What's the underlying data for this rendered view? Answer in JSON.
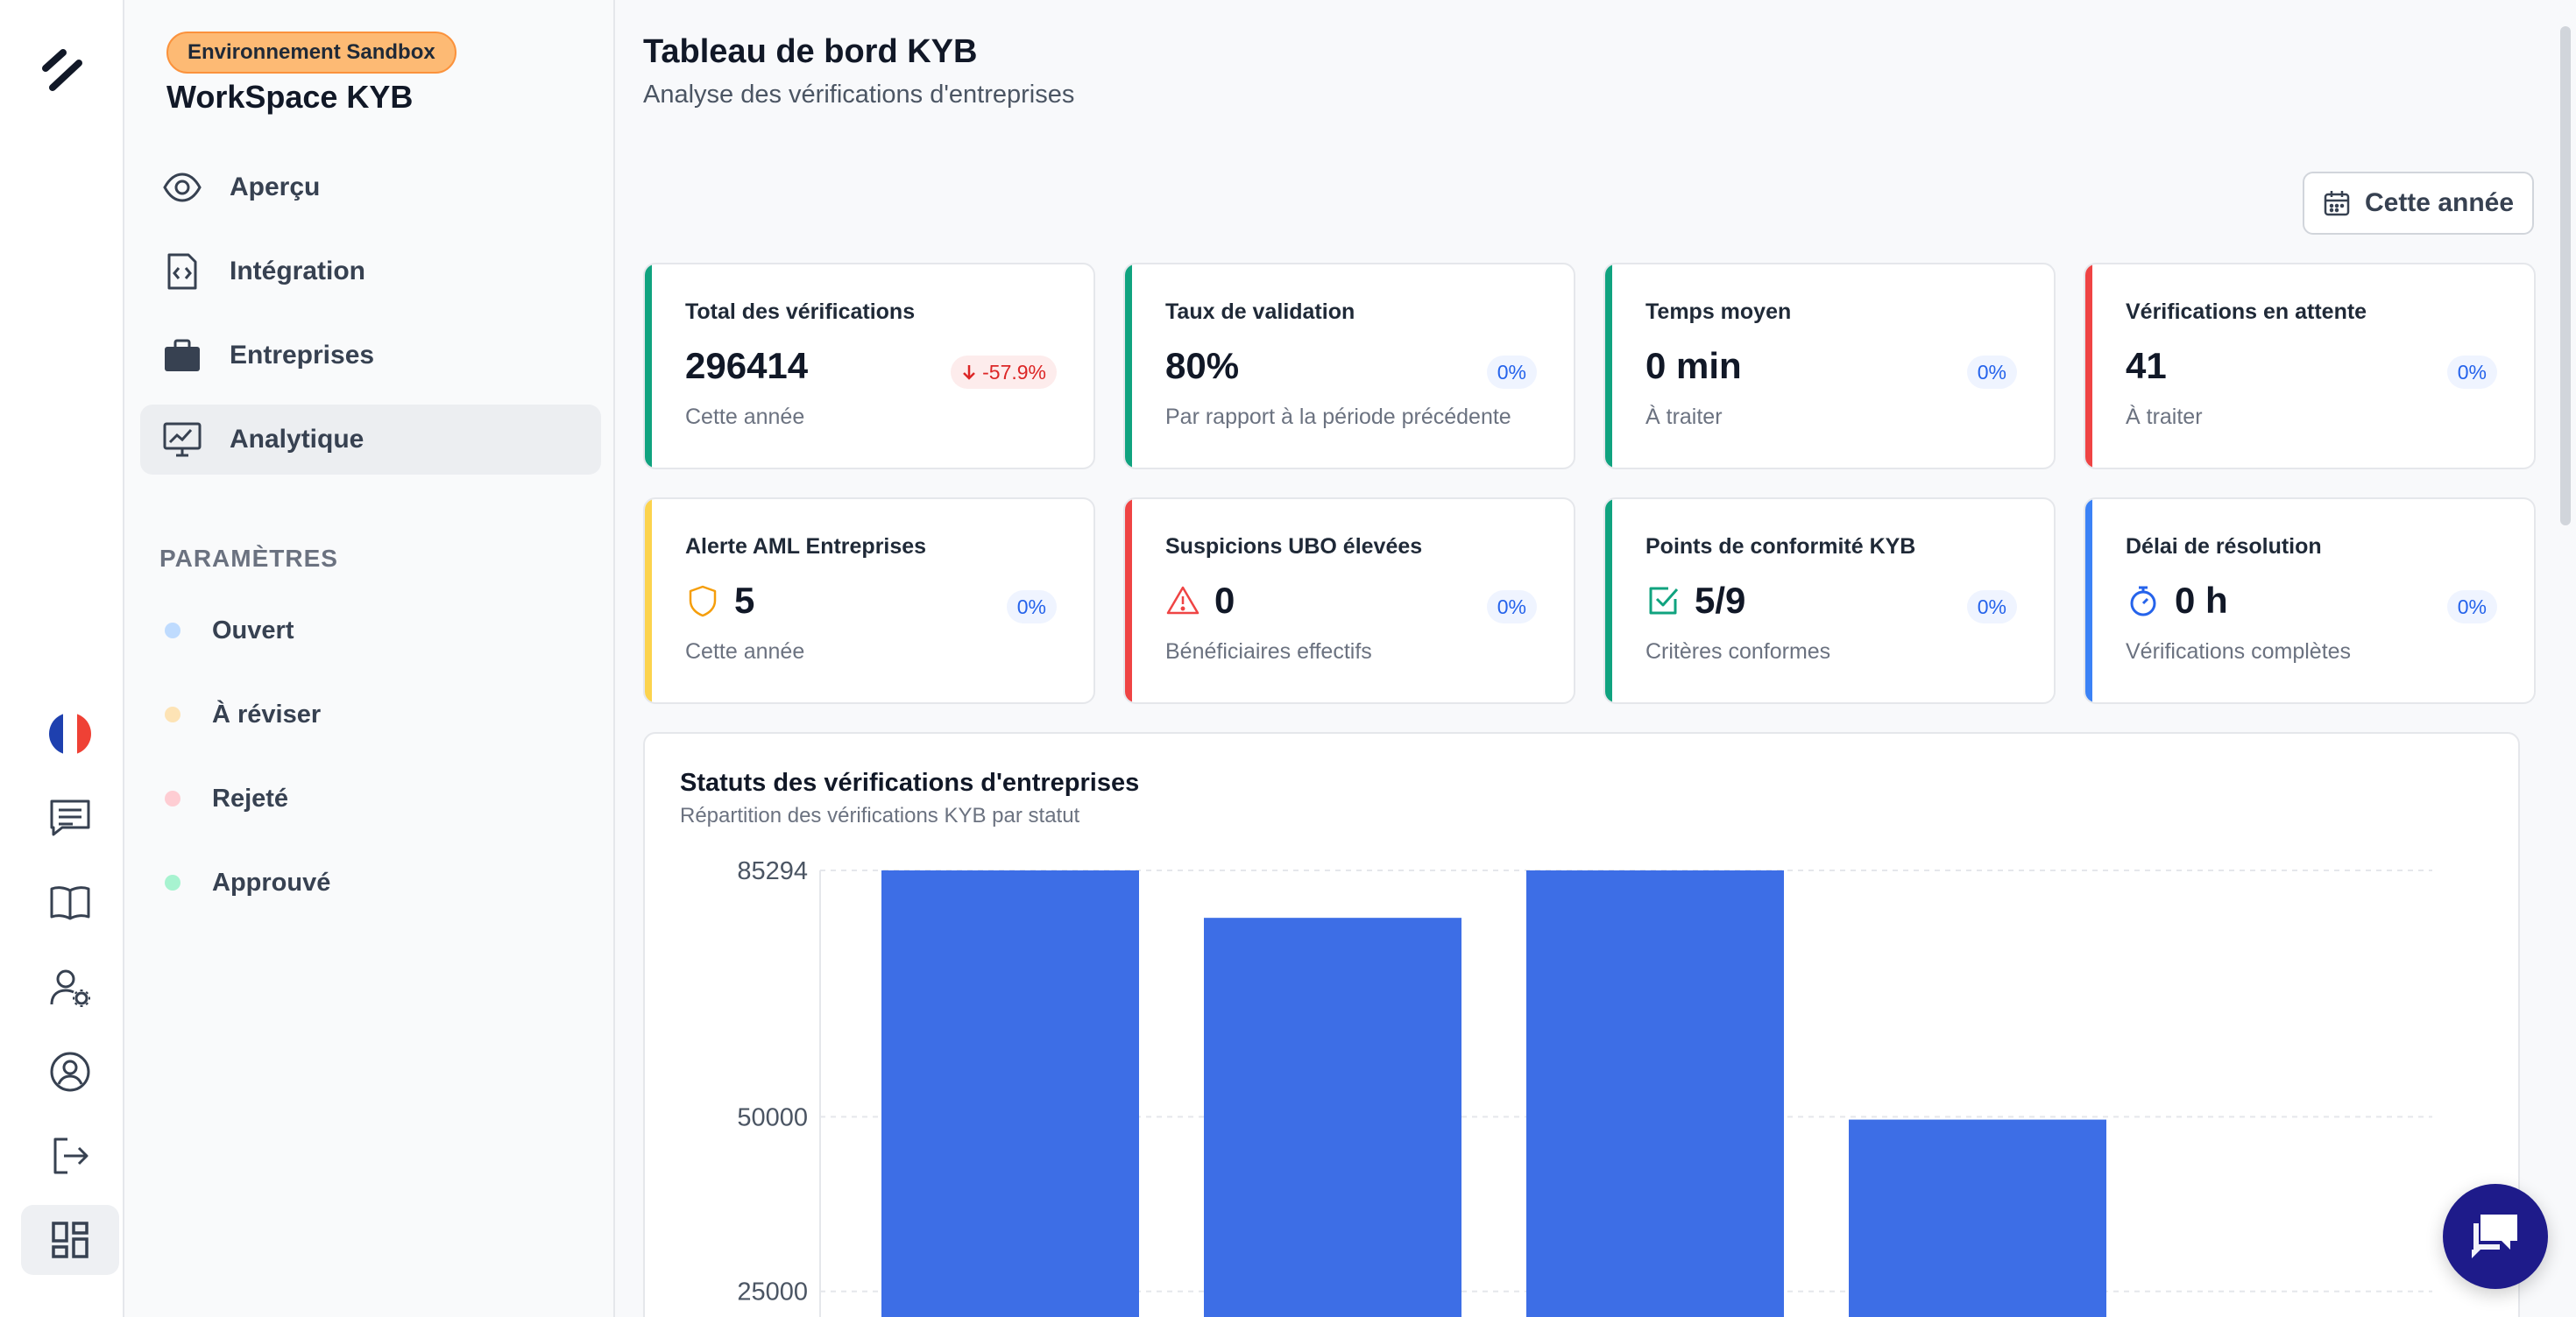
{
  "rail": {
    "icons": [
      "logo-icon",
      "french-flag-icon",
      "chat-icon",
      "book-icon",
      "user-settings-icon",
      "user-circle-icon",
      "logout-icon",
      "dashboard-icon"
    ]
  },
  "sidebar": {
    "badge": "Environnement Sandbox",
    "workspace": "WorkSpace KYB",
    "nav": [
      {
        "label": "Aperçu",
        "icon": "eye-icon"
      },
      {
        "label": "Intégration",
        "icon": "code-file-icon"
      },
      {
        "label": "Entreprises",
        "icon": "briefcase-icon"
      },
      {
        "label": "Analytique",
        "icon": "monitor-chart-icon",
        "active": true
      }
    ],
    "section_title": "PARAMÈTRES",
    "statuses": [
      {
        "label": "Ouvert",
        "color": "#bfdbfe"
      },
      {
        "label": "À réviser",
        "color": "#fde3b5"
      },
      {
        "label": "Rejeté",
        "color": "#fecdd3"
      },
      {
        "label": "Approuvé",
        "color": "#a7f3d0"
      }
    ]
  },
  "header": {
    "title": "Tableau de bord KYB",
    "subtitle": "Analyse des vérifications d'entreprises",
    "period_button": "Cette année"
  },
  "cards": [
    {
      "title": "Total des vérifications",
      "value": "296414",
      "sub": "Cette année",
      "badge": "-57.9%",
      "badge_type": "negative",
      "accent": "#10a37f"
    },
    {
      "title": "Taux de validation",
      "value": "80%",
      "sub": "Par rapport à la période précédente",
      "badge": "0%",
      "badge_type": "neutral",
      "accent": "#10a37f"
    },
    {
      "title": "Temps moyen",
      "value": "0 min",
      "sub": "À traiter",
      "badge": "0%",
      "badge_type": "neutral",
      "accent": "#10a37f"
    },
    {
      "title": "Vérifications en attente",
      "value": "41",
      "sub": "À traiter",
      "badge": "0%",
      "badge_type": "neutral",
      "accent": "#ef4444"
    },
    {
      "title": "Alerte AML Entreprises",
      "value": "5",
      "sub": "Cette année",
      "badge": "0%",
      "badge_type": "neutral",
      "accent": "#fcd34d",
      "icon": "shield-icon"
    },
    {
      "title": "Suspicions UBO élevées",
      "value": "0",
      "sub": "Bénéficiaires effectifs",
      "badge": "0%",
      "badge_type": "neutral",
      "accent": "#ef4444",
      "icon": "warning-icon"
    },
    {
      "title": "Points de conformité KYB",
      "value": "5/9",
      "sub": "Critères conformes",
      "badge": "0%",
      "badge_type": "neutral",
      "accent": "#10a37f",
      "icon": "check-square-icon"
    },
    {
      "title": "Délai de résolution",
      "value": "0 h",
      "sub": "Vérifications complètes",
      "badge": "0%",
      "badge_type": "neutral",
      "accent": "#3b82f6",
      "icon": "stopwatch-icon"
    }
  ],
  "chart": {
    "title": "Statuts des vérifications d'entreprises",
    "subtitle": "Répartition des vérifications KYB par statut"
  },
  "chart_data": {
    "type": "bar",
    "categories": [
      "",
      "",
      "",
      ""
    ],
    "values": [
      85294,
      78500,
      85294,
      49600
    ],
    "ytick_labels": [
      "85294",
      "50000",
      "25000"
    ],
    "ytick_values": [
      85294,
      50000,
      25000
    ],
    "ylim": [
      0,
      85294
    ],
    "color": "#3d6ee6",
    "grid": true
  },
  "colors": {
    "primary": "#3d6ee6",
    "chat": "#1e1b8a"
  }
}
